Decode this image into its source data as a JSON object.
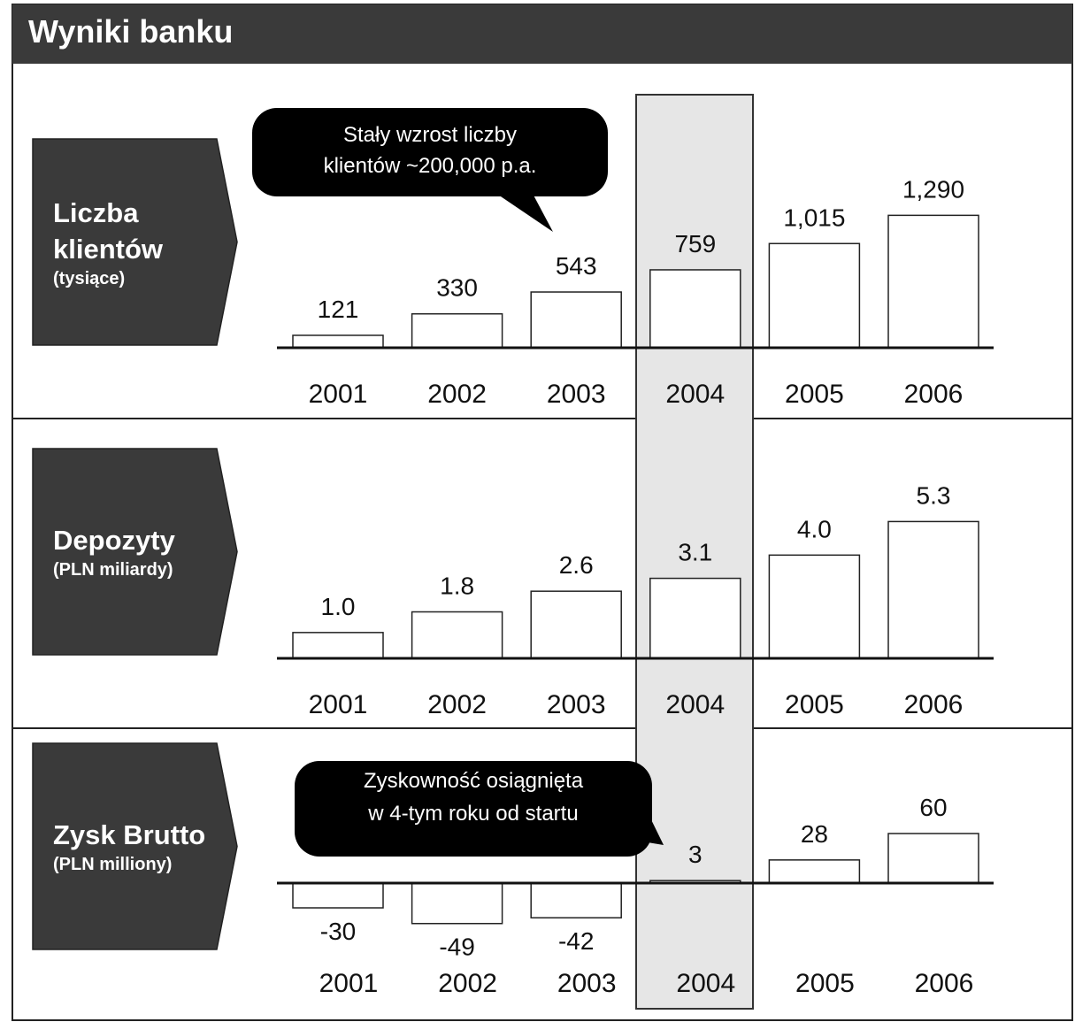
{
  "title": "Wyniki banku",
  "chart_data": [
    {
      "type": "bar",
      "title": "Liczba klientów",
      "subtitle": "(tysiące)",
      "categories": [
        "2001",
        "2002",
        "2003",
        "2004",
        "2005",
        "2006"
      ],
      "values": [
        121,
        330,
        543,
        759,
        1015,
        1290
      ],
      "value_labels": [
        "121",
        "330",
        "543",
        "759",
        "1,015",
        "1,290"
      ],
      "ylim": [
        0,
        1500
      ],
      "color": "#ffffff",
      "annotation": [
        "Stały wzrost liczby",
        "klientów ~200,000 p.a."
      ]
    },
    {
      "type": "bar",
      "title": "Depozyty",
      "subtitle": "(PLN miliardy)",
      "categories": [
        "2001",
        "2002",
        "2003",
        "2004",
        "2005",
        "2006"
      ],
      "values": [
        1.0,
        1.8,
        2.6,
        3.1,
        4.0,
        5.3
      ],
      "value_labels": [
        "1.0",
        "1.8",
        "2.6",
        "3.1",
        "4.0",
        "5.3"
      ],
      "ylim": [
        0,
        6
      ],
      "color": "#ffffff"
    },
    {
      "type": "bar",
      "title": "Zysk Brutto",
      "subtitle": "(PLN milliony)",
      "categories": [
        "2001",
        "2002",
        "2003",
        "2004",
        "2005",
        "2006"
      ],
      "values": [
        -30,
        -49,
        -42,
        3,
        28,
        60
      ],
      "ylim": [
        -60,
        120
      ],
      "color": "#ffffff",
      "annotation": [
        "Zyskowność osiągnięta",
        "w 4-tym roku od startu"
      ]
    }
  ]
}
